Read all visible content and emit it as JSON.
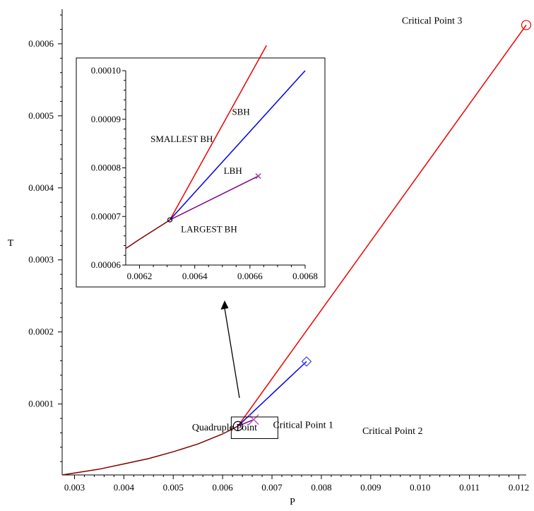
{
  "chart_data": {
    "type": "line",
    "title": "",
    "xlabel": "P",
    "ylabel": "T",
    "xlim": [
      0.00275,
      0.01215
    ],
    "ylim": [
      1.5e-06,
      0.000648
    ],
    "x_ticks": [
      0.003,
      0.004,
      0.005,
      0.006,
      0.007,
      0.008,
      0.009,
      0.01,
      0.011,
      0.012
    ],
    "x_tick_labels": [
      "0.003",
      "0.004",
      "0.005",
      "0.006",
      "0.007",
      "0.008",
      "0.009",
      "0.010",
      "0.011",
      "0.012"
    ],
    "y_ticks": [
      0.0001,
      0.0002,
      0.0003,
      0.0004,
      0.0005,
      0.0006
    ],
    "y_tick_labels": [
      "0.0001",
      "0.0002",
      "0.0003",
      "0.0004",
      "0.0005",
      "0.0006"
    ],
    "grid": false,
    "series": [
      {
        "color": "#800000",
        "points": [
          [
            0.00275,
            1.5e-06
          ],
          [
            0.0035,
            9.5e-06
          ],
          [
            0.004,
            1.68e-05
          ],
          [
            0.0045,
            2.42e-05
          ],
          [
            0.005,
            3.37e-05
          ],
          [
            0.0055,
            4.45e-05
          ],
          [
            0.006,
            5.84e-05
          ],
          [
            0.00631,
            6.93e-05
          ]
        ]
      },
      {
        "color": "#ee0000",
        "points": [
          [
            0.00631,
            6.93e-05
          ],
          [
            0.01215,
            0.000626
          ]
        ]
      },
      {
        "color": "#0000ee",
        "points": [
          [
            0.00631,
            6.93e-05
          ],
          [
            0.0077,
            0.000159
          ]
        ]
      },
      {
        "color": "#800080",
        "points": [
          [
            0.00631,
            6.93e-05
          ],
          [
            0.00663,
            7.83e-05
          ]
        ]
      }
    ],
    "markers": [
      {
        "shape": "circle",
        "color": "#ee0000",
        "x": 0.01215,
        "y": 0.000626
      },
      {
        "shape": "diamond",
        "color": "#4040ee",
        "x": 0.0077,
        "y": 0.000159
      },
      {
        "shape": "cross",
        "color": "#c060c0",
        "x": 0.00663,
        "y": 7.83e-05
      },
      {
        "shape": "circle",
        "color": "#000000",
        "x": 0.00631,
        "y": 6.93e-05
      }
    ],
    "annotations": [
      {
        "text": "Critical Point 3",
        "x": 0.00963,
        "y": 0.000628
      },
      {
        "text": "Critical Point 2",
        "x": 0.00883,
        "y": 5.85e-05
      },
      {
        "text": "Critical Point 1",
        "x": 0.00702,
        "y": 6.65e-05
      },
      {
        "text": "Quadruple Point",
        "x": 0.00538,
        "y": 6.35e-05
      }
    ],
    "zoom_box": {
      "x0": 0.006175,
      "x1": 0.00712,
      "y0": 5.2e-05,
      "y1": 8.2e-05
    },
    "inset": {
      "xlim": [
        0.00615,
        0.0068
      ],
      "ylim": [
        6e-05,
        0.0001
      ],
      "x_ticks": [
        0.0062,
        0.0064,
        0.0066,
        0.0068
      ],
      "x_tick_labels": [
        "0.0062",
        "0.0064",
        "0.0066",
        "0.0068"
      ],
      "y_ticks": [
        6e-05,
        7e-05,
        8e-05,
        9e-05,
        0.0001
      ],
      "y_tick_labels": [
        "0.00006",
        "0.00007",
        "0.00008",
        "0.00009",
        "0.00010"
      ],
      "series": [
        {
          "color": "#800000",
          "points": [
            [
              0.00615,
              6.34e-05
            ],
            [
              0.0062,
              6.53e-05
            ],
            [
              0.0063,
              6.89e-05
            ],
            [
              0.00631,
              6.93e-05
            ]
          ]
        },
        {
          "color": "#ee0000",
          "points": [
            [
              0.00631,
              6.93e-05
            ],
            [
              0.00666,
              0.0001052
            ]
          ]
        },
        {
          "color": "#0000ee",
          "points": [
            [
              0.00631,
              6.93e-05
            ],
            [
              0.0068,
              0.0001
            ]
          ]
        },
        {
          "color": "#800080",
          "points": [
            [
              0.00631,
              6.93e-05
            ],
            [
              0.00663,
              7.83e-05
            ]
          ]
        }
      ],
      "markers": [
        {
          "shape": "circle",
          "color": "#000000",
          "x": 0.00631,
          "y": 6.93e-05
        },
        {
          "shape": "cross",
          "color": "#a040a0",
          "x": 0.00663,
          "y": 7.83e-05
        }
      ],
      "labels": [
        {
          "text": "SBH",
          "x": 0.006535,
          "y": 9.09e-05
        },
        {
          "text": "SMALLEST BH",
          "x": 0.00624,
          "y": 8.53e-05
        },
        {
          "text": "LBH",
          "x": 0.006505,
          "y": 7.88e-05
        },
        {
          "text": "LARGEST BH",
          "x": 0.00635,
          "y": 6.68e-05
        }
      ]
    }
  }
}
